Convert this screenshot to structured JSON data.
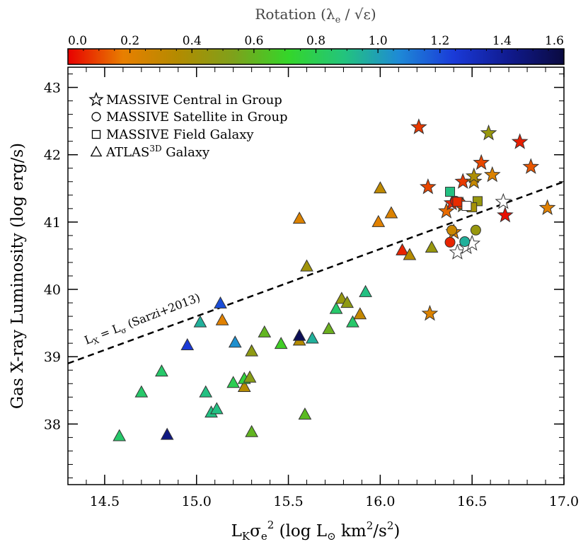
{
  "chart_data": {
    "type": "scatter",
    "xlabel": {
      "main": "L",
      "sub1": "K",
      "sigma": "σ",
      "sub2": "e",
      "sup": "2",
      "rest": " (log L",
      "sun": "⊙",
      "rest2": " km",
      "sup2": "2",
      "rest3": "/s",
      "sup3": "2",
      "end": ")"
    },
    "ylabel": "Gas X-ray Luminosity (log erg/s)",
    "xlim": [
      14.3,
      17.0
    ],
    "ylim": [
      37.1,
      43.3
    ],
    "xticks": [
      14.5,
      15.0,
      15.5,
      16.0,
      16.5,
      17.0
    ],
    "xtick_labels": [
      "14.5",
      "15.0",
      "15.5",
      "16.0",
      "16.5",
      "17.0"
    ],
    "yticks": [
      38,
      39,
      40,
      41,
      42,
      43
    ],
    "ytick_labels": [
      "38",
      "39",
      "40",
      "41",
      "42",
      "43"
    ],
    "colorbar": {
      "title": "Rotation (λ",
      "title_sub": "e",
      "title_mid": " / √ε)",
      "range": [
        0.0,
        1.6
      ],
      "ticks": [
        0.0,
        0.2,
        0.4,
        0.6,
        0.8,
        1.0,
        1.2,
        1.4,
        1.6
      ],
      "tick_labels": [
        "0.0",
        "0.2",
        "0.4",
        "0.6",
        "0.8",
        "1.0",
        "1.2",
        "1.4",
        "1.6"
      ],
      "colors": [
        "#e80000",
        "#e87f00",
        "#b38b00",
        "#7ea11b",
        "#34d62a",
        "#23c47c",
        "#1e8ad6",
        "#1a3ad8",
        "#101a8e",
        "#0a0a40"
      ]
    },
    "legend": {
      "placement": "top-left",
      "items": [
        {
          "marker": "star",
          "label": "MASSIVE Central in Group"
        },
        {
          "marker": "circle",
          "label": "MASSIVE Satellite in Group"
        },
        {
          "marker": "square",
          "label": "MASSIVE Field Galaxy"
        },
        {
          "marker": "triangle",
          "label": "ATLAS",
          "sup": "3D",
          "label2": " Galaxy"
        }
      ]
    },
    "relation": {
      "name": "L_X = L_sigma (Sarzi+2013)",
      "label_main": "L",
      "label_sub1": "X",
      "label_eq": " = L",
      "label_sub2": "σ",
      "label_ref": " (Sarzi+2013)",
      "x": [
        14.3,
        17.0
      ],
      "y": [
        38.9,
        41.6
      ],
      "style": "dashed"
    },
    "series": [
      {
        "name": "ATLAS3D Galaxy",
        "marker": "triangle",
        "points": [
          {
            "x": 14.58,
            "y": 37.82,
            "rot": 0.85
          },
          {
            "x": 14.7,
            "y": 38.47,
            "rot": 0.85
          },
          {
            "x": 14.81,
            "y": 38.78,
            "rot": 0.85
          },
          {
            "x": 14.84,
            "y": 37.84,
            "rot": 1.45
          },
          {
            "x": 14.95,
            "y": 39.17,
            "rot": 1.25
          },
          {
            "x": 15.02,
            "y": 39.51,
            "rot": 0.95
          },
          {
            "x": 15.05,
            "y": 38.47,
            "rot": 0.9
          },
          {
            "x": 15.08,
            "y": 38.17,
            "rot": 0.9
          },
          {
            "x": 15.11,
            "y": 38.22,
            "rot": 0.9
          },
          {
            "x": 15.13,
            "y": 39.79,
            "rot": 1.2
          },
          {
            "x": 15.14,
            "y": 39.54,
            "rot": 0.2
          },
          {
            "x": 15.2,
            "y": 38.61,
            "rot": 0.8
          },
          {
            "x": 15.21,
            "y": 39.21,
            "rot": 1.05
          },
          {
            "x": 15.26,
            "y": 38.55,
            "rot": 0.35
          },
          {
            "x": 15.26,
            "y": 38.67,
            "rot": 0.75
          },
          {
            "x": 15.29,
            "y": 38.69,
            "rot": 0.5
          },
          {
            "x": 15.3,
            "y": 39.08,
            "rot": 0.48
          },
          {
            "x": 15.3,
            "y": 37.88,
            "rot": 0.6
          },
          {
            "x": 15.37,
            "y": 39.36,
            "rot": 0.6
          },
          {
            "x": 15.46,
            "y": 39.19,
            "rot": 0.68
          },
          {
            "x": 15.56,
            "y": 41.05,
            "rot": 0.22
          },
          {
            "x": 15.56,
            "y": 39.24,
            "rot": 0.35
          },
          {
            "x": 15.56,
            "y": 39.31,
            "rot": 1.55
          },
          {
            "x": 15.59,
            "y": 38.14,
            "rot": 0.62
          },
          {
            "x": 15.6,
            "y": 40.34,
            "rot": 0.42
          },
          {
            "x": 15.63,
            "y": 39.27,
            "rot": 0.95
          },
          {
            "x": 15.72,
            "y": 39.41,
            "rot": 0.58
          },
          {
            "x": 15.76,
            "y": 39.71,
            "rot": 0.85
          },
          {
            "x": 15.79,
            "y": 39.86,
            "rot": 0.45
          },
          {
            "x": 15.82,
            "y": 39.8,
            "rot": 0.48
          },
          {
            "x": 15.85,
            "y": 39.51,
            "rot": 0.85
          },
          {
            "x": 15.89,
            "y": 39.63,
            "rot": 0.3
          },
          {
            "x": 15.92,
            "y": 39.96,
            "rot": 0.9
          },
          {
            "x": 15.99,
            "y": 41.0,
            "rot": 0.2
          },
          {
            "x": 16.0,
            "y": 41.5,
            "rot": 0.32
          },
          {
            "x": 16.06,
            "y": 41.13,
            "rot": 0.22
          },
          {
            "x": 16.12,
            "y": 40.58,
            "rot": 0.05
          },
          {
            "x": 16.16,
            "y": 40.51,
            "rot": 0.35
          },
          {
            "x": 16.28,
            "y": 40.62,
            "rot": 0.45
          }
        ]
      },
      {
        "name": "MASSIVE Central in Group",
        "marker": "star",
        "points": [
          {
            "x": 16.21,
            "y": 42.41,
            "rot": 0.08
          },
          {
            "x": 16.26,
            "y": 41.52,
            "rot": 0.1
          },
          {
            "x": 16.27,
            "y": 39.64,
            "rot": 0.22
          },
          {
            "x": 16.36,
            "y": 41.16,
            "rot": 0.15
          },
          {
            "x": 16.39,
            "y": 41.28,
            "rot": 0.05
          },
          {
            "x": 16.4,
            "y": 40.85,
            "rot": 0.2
          },
          {
            "x": 16.42,
            "y": 40.55,
            "rot": null
          },
          {
            "x": 16.45,
            "y": 41.6,
            "rot": 0.08
          },
          {
            "x": 16.47,
            "y": 40.63,
            "rot": null
          },
          {
            "x": 16.5,
            "y": 40.68,
            "rot": null
          },
          {
            "x": 16.51,
            "y": 41.6,
            "rot": 0.3
          },
          {
            "x": 16.51,
            "y": 41.68,
            "rot": 0.38
          },
          {
            "x": 16.55,
            "y": 41.88,
            "rot": 0.1
          },
          {
            "x": 16.59,
            "y": 42.32,
            "rot": 0.45
          },
          {
            "x": 16.61,
            "y": 41.7,
            "rot": 0.22
          },
          {
            "x": 16.67,
            "y": 41.3,
            "rot": null
          },
          {
            "x": 16.68,
            "y": 41.1,
            "rot": 0.02
          },
          {
            "x": 16.76,
            "y": 42.19,
            "rot": 0.04
          },
          {
            "x": 16.82,
            "y": 41.82,
            "rot": 0.12
          },
          {
            "x": 16.91,
            "y": 41.21,
            "rot": 0.2
          },
          {
            "x": 16.45,
            "y": 41.25,
            "rot": 0.45
          }
        ]
      },
      {
        "name": "MASSIVE Satellite in Group",
        "marker": "circle",
        "points": [
          {
            "x": 16.38,
            "y": 40.7,
            "rot": 0.05
          },
          {
            "x": 16.39,
            "y": 40.88,
            "rot": 0.28
          },
          {
            "x": 16.41,
            "y": 41.31,
            "rot": 0.03
          },
          {
            "x": 16.46,
            "y": 40.71,
            "rot": 0.95
          },
          {
            "x": 16.52,
            "y": 40.88,
            "rot": 0.45
          },
          {
            "x": 16.44,
            "y": 41.27,
            "rot": 0.1
          }
        ]
      },
      {
        "name": "MASSIVE Field Galaxy",
        "marker": "square",
        "points": [
          {
            "x": 16.38,
            "y": 41.45,
            "rot": 0.9
          },
          {
            "x": 16.42,
            "y": 41.3,
            "rot": 0.06
          },
          {
            "x": 16.53,
            "y": 41.31,
            "rot": 0.45
          },
          {
            "x": 16.5,
            "y": 41.22,
            "rot": 0.4
          },
          {
            "x": 16.47,
            "y": 41.24,
            "rot": null
          }
        ]
      }
    ]
  }
}
